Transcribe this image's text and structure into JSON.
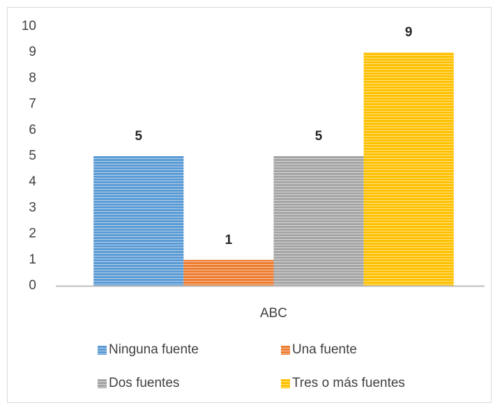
{
  "chart_data": {
    "type": "bar",
    "categories": [
      "ABC"
    ],
    "series": [
      {
        "name": "Ninguna fuente",
        "color": "#5b9bd5",
        "values": [
          5
        ]
      },
      {
        "name": "Una fuente",
        "color": "#ed7d31",
        "values": [
          1
        ]
      },
      {
        "name": "Dos fuentes",
        "color": "#a5a5a5",
        "values": [
          5
        ]
      },
      {
        "name": "Tres o más fuentes",
        "color": "#ffc000",
        "values": [
          9
        ]
      }
    ],
    "ylim": [
      0,
      10
    ],
    "yticks": [
      0,
      1,
      2,
      3,
      4,
      5,
      6,
      7,
      8,
      9,
      10
    ],
    "grid": false,
    "legend": "bottom"
  }
}
